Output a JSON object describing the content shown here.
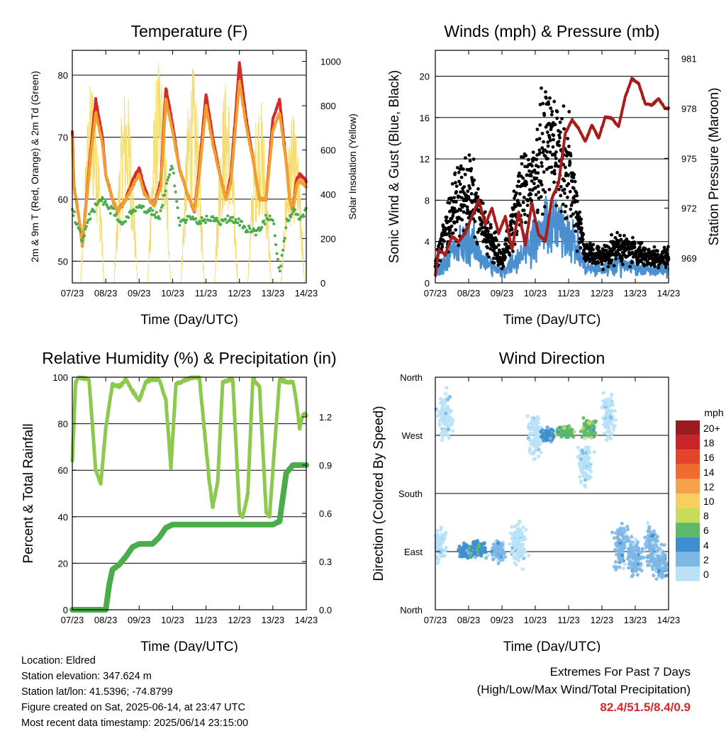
{
  "chart_data": [
    {
      "type": "line",
      "title": "Temperature (F)",
      "xlabel": "Time (Day/UTC)",
      "ylabel": "2m & 9m T (Red, Orange) & 2m Td (Green)",
      "ylabel_right": "Solar Insolation (Yellow)",
      "x_ticks": [
        "07/23",
        "08/23",
        "09/23",
        "10/23",
        "11/23",
        "12/23",
        "13/23",
        "14/23"
      ],
      "ylim": [
        46.5,
        84
      ],
      "y_ticks": [
        50,
        60,
        70,
        80
      ],
      "y2lim": [
        0,
        1050
      ],
      "y2_ticks": [
        0,
        200,
        400,
        600,
        800,
        1000
      ],
      "grid": true,
      "series": [
        {
          "name": "2m T",
          "color": "#d42a2a",
          "x": [
            0,
            0.05,
            0.2,
            0.3,
            0.55,
            0.7,
            0.9,
            1.0,
            1.2,
            1.35,
            1.6,
            1.8,
            2.0,
            2.15,
            2.3,
            2.45,
            2.65,
            2.8,
            3.0,
            3.2,
            3.5,
            3.65,
            3.8,
            4.0,
            4.2,
            4.45,
            4.6,
            4.75,
            5.0,
            5.2,
            5.45,
            5.6,
            5.8,
            6.0,
            6.2,
            6.4,
            6.5,
            6.6,
            6.7,
            6.8,
            7.0
          ],
          "values": [
            71,
            62,
            57,
            52.5,
            68,
            76,
            70,
            64,
            60,
            58,
            60,
            63,
            65,
            62,
            60,
            59,
            63,
            78,
            72,
            65,
            60,
            58,
            65,
            77,
            70,
            63,
            60,
            64,
            82,
            73,
            65,
            60,
            60,
            73,
            76,
            66,
            60,
            58,
            63,
            64,
            63
          ]
        },
        {
          "name": "9m T",
          "color": "#f0a030",
          "x": [
            0,
            0.05,
            0.2,
            0.3,
            0.55,
            0.7,
            0.9,
            1.0,
            1.2,
            1.35,
            1.6,
            1.8,
            2.0,
            2.15,
            2.3,
            2.45,
            2.65,
            2.8,
            3.0,
            3.2,
            3.5,
            3.65,
            3.8,
            4.0,
            4.2,
            4.45,
            4.6,
            4.75,
            5.0,
            5.2,
            5.45,
            5.6,
            5.8,
            6.0,
            6.2,
            6.4,
            6.5,
            6.6,
            6.7,
            6.8,
            7.0
          ],
          "values": [
            70,
            62,
            57,
            52.5,
            67,
            74,
            69,
            64,
            60,
            58,
            60,
            62,
            64,
            61,
            60,
            59,
            62,
            76,
            71,
            65,
            60,
            58,
            64,
            75,
            69,
            63,
            60,
            63,
            79,
            72,
            65,
            60,
            60,
            71,
            74,
            66,
            60,
            58,
            62,
            63,
            62
          ]
        },
        {
          "name": "2m Td",
          "color": "#4aad4a",
          "x": [
            0,
            0.1,
            0.3,
            0.5,
            0.8,
            1.0,
            1.2,
            1.5,
            1.8,
            2.0,
            2.3,
            2.6,
            2.9,
            3.0,
            3.2,
            3.5,
            3.8,
            4.1,
            4.4,
            4.7,
            5.0,
            5.3,
            5.6,
            5.8,
            6.0,
            6.2,
            6.4,
            6.6,
            6.8,
            7.0
          ],
          "values": [
            58,
            57,
            53,
            57,
            60,
            59,
            58,
            56,
            58,
            59,
            58,
            57,
            64,
            65,
            56,
            57,
            56,
            57,
            56,
            57,
            56,
            55,
            55,
            57,
            57,
            48,
            56,
            58,
            57,
            58
          ]
        }
      ],
      "solar_insolation": {
        "name": "Solar Insolation",
        "color": "#f5dc6e",
        "day_peaks": [
          {
            "day": 0.6,
            "peak": 950
          },
          {
            "day": 1.6,
            "peak": 900
          },
          {
            "day": 2.6,
            "peak": 1000
          },
          {
            "day": 3.6,
            "peak": 980
          },
          {
            "day": 4.6,
            "peak": 920
          },
          {
            "day": 5.6,
            "peak": 850
          },
          {
            "day": 6.6,
            "peak": 760
          }
        ]
      }
    },
    {
      "type": "line",
      "title": "Winds (mph) & Pressure (mb)",
      "xlabel": "Time (Day/UTC)",
      "ylabel": "Sonic Wind & Gust (Blue, Black)",
      "ylabel_right": "Station Pressure (Maroon)",
      "x_ticks": [
        "07/23",
        "08/23",
        "09/23",
        "10/23",
        "11/23",
        "12/23",
        "13/23",
        "14/23"
      ],
      "ylim": [
        0,
        22.5
      ],
      "y_ticks": [
        0,
        4,
        8,
        12,
        16,
        20
      ],
      "y2lim": [
        967.5,
        981.5
      ],
      "y2_ticks": [
        969,
        972,
        975,
        978,
        981
      ],
      "grid": true,
      "series": [
        {
          "name": "Station Pressure",
          "color": "#a51d1d",
          "x": [
            0,
            0.1,
            0.3,
            0.5,
            0.7,
            0.9,
            1.1,
            1.3,
            1.5,
            1.7,
            1.9,
            2.1,
            2.3,
            2.5,
            2.7,
            2.9,
            3.1,
            3.3,
            3.5,
            3.7,
            3.9,
            4.1,
            4.3,
            4.5,
            4.7,
            4.9,
            5.1,
            5.3,
            5.5,
            5.7,
            5.9,
            6.1,
            6.3,
            6.5,
            6.7,
            6.9,
            7.0
          ],
          "values": [
            968,
            969.5,
            969.2,
            970.3,
            970,
            970.5,
            971.5,
            972.5,
            971,
            972,
            970.5,
            971.5,
            969.5,
            971.8,
            969.8,
            972.3,
            970.4,
            970,
            972.6,
            973.5,
            976.5,
            977.3,
            976.8,
            976,
            977,
            976.2,
            977.5,
            977.4,
            976.9,
            978.7,
            979.8,
            979.5,
            978.3,
            978.2,
            978.6,
            978,
            978
          ]
        },
        {
          "name": "Gust",
          "color": "#000000",
          "day_means": [
            2,
            7,
            9,
            5,
            2,
            8,
            11,
            14,
            11,
            3,
            2.5,
            3.5,
            3,
            2.5
          ],
          "x": [
            0,
            0.5,
            1.0,
            1.5,
            2.0,
            2.5,
            3.0,
            3.5,
            4.0,
            4.5,
            5.0,
            5.5,
            6.0,
            6.5
          ]
        },
        {
          "name": "Sonic Wind",
          "color": "#4a90d0",
          "day_means": [
            0.8,
            3,
            4,
            2,
            1,
            2.5,
            4.5,
            5.5,
            5,
            1.5,
            1.2,
            2,
            1.5,
            1.2
          ],
          "x": [
            0,
            0.5,
            1.0,
            1.5,
            2.0,
            2.5,
            3.0,
            3.5,
            4.0,
            4.5,
            5.0,
            5.5,
            6.0,
            6.5
          ]
        }
      ]
    },
    {
      "type": "line",
      "title": "Relative Humidity (%) & Precipitation (in)",
      "xlabel": "Time (Day/UTC)",
      "ylabel": "Percent & Total Rainfall",
      "x_ticks": [
        "07/23",
        "08/23",
        "09/23",
        "10/23",
        "11/23",
        "12/23",
        "13/23",
        "14/23"
      ],
      "ylim": [
        0,
        100
      ],
      "y_ticks": [
        0,
        20,
        40,
        60,
        80,
        100
      ],
      "y2lim": [
        0,
        1.447
      ],
      "y2_ticks": [
        "0.0",
        "0.3",
        "0.6",
        "0.9",
        "1.2"
      ],
      "grid": true,
      "series": [
        {
          "name": "Relative Humidity",
          "color": "#8dc84f",
          "x": [
            0,
            0.1,
            0.2,
            0.5,
            0.7,
            0.85,
            1.0,
            1.2,
            1.4,
            1.6,
            1.8,
            2.0,
            2.2,
            2.4,
            2.6,
            2.8,
            2.95,
            3.1,
            3.4,
            3.6,
            3.8,
            4.1,
            4.2,
            4.35,
            4.5,
            4.8,
            5.0,
            5.1,
            5.25,
            5.4,
            5.6,
            5.8,
            5.9,
            6.0,
            6.2,
            6.4,
            6.6,
            6.7,
            6.8,
            6.9,
            7.0
          ],
          "values": [
            64,
            98,
            100,
            99,
            60,
            54,
            78,
            97,
            96,
            99,
            94,
            90,
            98,
            99,
            99,
            90,
            61,
            97,
            99,
            100,
            100,
            55,
            44,
            55,
            98,
            99,
            42,
            40,
            50,
            99,
            96,
            42,
            40,
            60,
            99,
            98,
            98,
            90,
            78,
            84,
            84
          ]
        },
        {
          "name": "Total Precipitation",
          "color": "#4aad4a",
          "x": [
            0,
            0.5,
            1.0,
            1.1,
            1.2,
            1.4,
            1.6,
            1.8,
            2.0,
            2.4,
            2.6,
            2.8,
            3.0,
            3.5,
            4.0,
            5.0,
            6.0,
            6.2,
            6.3,
            6.4,
            6.6,
            7.0
          ],
          "values": [
            0,
            0,
            0,
            0.15,
            0.25,
            0.28,
            0.33,
            0.39,
            0.41,
            0.41,
            0.45,
            0.51,
            0.53,
            0.53,
            0.53,
            0.53,
            0.53,
            0.55,
            0.7,
            0.85,
            0.9,
            0.9
          ]
        }
      ]
    },
    {
      "type": "scatter",
      "title": "Wind Direction",
      "xlabel": "Time (Day/UTC)",
      "ylabel": "Direction (Colored By Speed)",
      "x_ticks": [
        "07/23",
        "08/23",
        "09/23",
        "10/23",
        "11/23",
        "12/23",
        "13/23",
        "14/23"
      ],
      "y_ticks": [
        "North",
        "East",
        "South",
        "West",
        "North"
      ],
      "ylim": [
        0,
        360
      ],
      "grid": true,
      "clusters": [
        {
          "day": 0.1,
          "dir": 100,
          "spread": 30,
          "speed": 0
        },
        {
          "day": 0.3,
          "dir": 300,
          "spread": 40,
          "speed": 0
        },
        {
          "day": 0.9,
          "dir": 90,
          "spread": 12,
          "speed": 4
        },
        {
          "day": 1.3,
          "dir": 95,
          "spread": 14,
          "speed": 4
        },
        {
          "day": 1.9,
          "dir": 90,
          "spread": 18,
          "speed": 2
        },
        {
          "day": 2.5,
          "dir": 100,
          "spread": 40,
          "speed": 0
        },
        {
          "day": 3.0,
          "dir": 270,
          "spread": 40,
          "speed": 0
        },
        {
          "day": 3.4,
          "dir": 270,
          "spread": 12,
          "speed": 4
        },
        {
          "day": 3.9,
          "dir": 275,
          "spread": 10,
          "speed": 6
        },
        {
          "day": 4.6,
          "dir": 280,
          "spread": 15,
          "speed": 6
        },
        {
          "day": 4.5,
          "dir": 230,
          "spread": 40,
          "speed": 0
        },
        {
          "day": 5.2,
          "dir": 300,
          "spread": 40,
          "speed": 0
        },
        {
          "day": 5.6,
          "dir": 100,
          "spread": 40,
          "speed": 2
        },
        {
          "day": 6.0,
          "dir": 80,
          "spread": 35,
          "speed": 2
        },
        {
          "day": 6.5,
          "dir": 100,
          "spread": 40,
          "speed": 2
        },
        {
          "day": 6.8,
          "dir": 70,
          "spread": 30,
          "speed": 2
        }
      ],
      "legend": {
        "title": "mph",
        "placement": "right",
        "labels": [
          "20+",
          "18",
          "16",
          "14",
          "12",
          "10",
          "8",
          "6",
          "4",
          "2",
          "0"
        ],
        "colors": [
          "#9b1b1e",
          "#c9242a",
          "#e3442a",
          "#f06b2e",
          "#f7a24a",
          "#f5d05e",
          "#c8dc5a",
          "#5cb86a",
          "#3d8fcf",
          "#7db7e6",
          "#b9e2f7"
        ]
      }
    }
  ],
  "footer": {
    "location": "Location: Eldred",
    "elevation": "Station elevation: 347.624 m",
    "latlon": "Station lat/lon: 41.5396; -74.8799",
    "created": "Figure created on Sat, 2025-06-14, at 23:47 UTC",
    "recent": "Most recent data timestamp: 2025/06/14 23:15:00",
    "extremes_title": "Extremes For Past 7 Days",
    "extremes_sub": "(High/Low/Max Wind/Total Precipitation)",
    "extremes_values": "82.4/51.5/8.4/0.9"
  }
}
